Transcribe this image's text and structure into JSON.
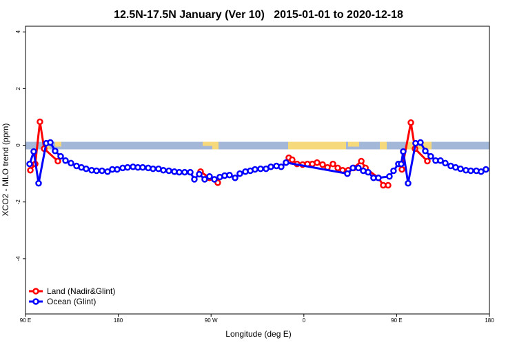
{
  "chart_data": {
    "type": "line",
    "title": "12.5N-17.5N January (Ver 10)   2015-01-01 to 2020-12-18",
    "x_label": "Longitude (deg E)",
    "y_label": "XCO2 - MLO trend (ppm)",
    "xlim": [
      90,
      540
    ],
    "ylim": [
      -5.95,
      4.2
    ],
    "xticks": [
      {
        "value": 90,
        "label": "90 E"
      },
      180,
      {
        "value": 270,
        "label": "90 W"
      },
      {
        "value": 360,
        "label": "0"
      },
      {
        "value": 450,
        "label": "90 E"
      },
      {
        "value": 540,
        "label": "180"
      }
    ],
    "yticks": [
      -4,
      -2,
      0,
      2,
      4
    ],
    "legend": "bottom-left",
    "series": [
      {
        "name": "Land (Nadir&Glint)",
        "color": "#ff0000",
        "x": [
          94.7,
          99.4,
          104.0,
          108.1,
          121.4,
          190,
          259.8,
          268.5,
          276.5,
          310,
          345.4,
          348.7,
          353.4,
          358.8,
          363.5,
          368.2,
          372.8,
          378.2,
          382.9,
          388.2,
          392.9,
          397.6,
          403.0,
          408.4,
          415.7,
          419.8,
          432.3,
          437.0,
          441.7,
          448,
          455.1,
          463.8,
          467.8,
          479.8
        ],
        "values": [
          -0.88,
          -0.66,
          0.83,
          -0.12,
          -0.56,
          null,
          -0.93,
          -1.15,
          -1.32,
          null,
          -0.44,
          -0.51,
          -0.66,
          -0.68,
          -0.66,
          -0.66,
          -0.61,
          -0.68,
          -0.78,
          -0.66,
          -0.8,
          -0.88,
          -0.88,
          -0.8,
          -0.56,
          -0.8,
          -1.15,
          -1.41,
          -1.41,
          null,
          -0.85,
          0.8,
          -0.12,
          -0.56
        ]
      },
      {
        "name": "Ocean (Glint)",
        "color": "#0000ff",
        "x": [
          94.0,
          98.0,
          102.7,
          110.1,
          114.1,
          118.7,
          124.1,
          128.8,
          134.1,
          139.5,
          144.2,
          148.8,
          154.2,
          158.9,
          164.2,
          169.6,
          174.2,
          178.9,
          184.3,
          189.0,
          194.3,
          199.0,
          203.7,
          209.0,
          213.7,
          219.0,
          223.7,
          229.1,
          234.4,
          239.1,
          244.4,
          249.8,
          253.8,
          258.5,
          263.8,
          268.5,
          273.2,
          278.5,
          283.2,
          287.9,
          293.3,
          297.9,
          303.3,
          308.0,
          312.6,
          318.0,
          323.3,
          328.0,
          333.4,
          338.0,
          342.7,
          402.2,
          407.6,
          412.9,
          417.6,
          422.3,
          427.6,
          432.3,
          443.0,
          447.0,
          451.7,
          454.4,
          456.4,
          461.1,
          468.4,
          473.1,
          477.8,
          483.1,
          487.8,
          492.5,
          497.2,
          502.5,
          507.2,
          511.9,
          517.2,
          521.9,
          527.3,
          531.9,
          536.6
        ],
        "values": [
          -0.66,
          -0.22,
          -1.34,
          0.07,
          0.1,
          -0.2,
          -0.39,
          -0.54,
          -0.63,
          -0.73,
          -0.78,
          -0.83,
          -0.88,
          -0.9,
          -0.9,
          -0.93,
          -0.85,
          -0.85,
          -0.8,
          -0.78,
          -0.76,
          -0.78,
          -0.78,
          -0.8,
          -0.83,
          -0.83,
          -0.88,
          -0.9,
          -0.93,
          -0.95,
          -0.95,
          -0.95,
          -1.2,
          -1.02,
          -1.2,
          -1.1,
          -1.2,
          -1.12,
          -1.07,
          -1.05,
          -1.15,
          -1.0,
          -0.93,
          -0.9,
          -0.85,
          -0.83,
          -0.83,
          -0.76,
          -0.73,
          -0.76,
          -0.61,
          -1.0,
          -0.8,
          -0.8,
          -0.9,
          -0.95,
          -1.15,
          -1.15,
          -1.1,
          -0.9,
          -0.66,
          -0.66,
          -0.22,
          -1.34,
          0.07,
          0.1,
          -0.2,
          -0.39,
          -0.54,
          -0.54,
          -0.63,
          -0.73,
          -0.78,
          -0.83,
          -0.88,
          -0.9,
          -0.9,
          -0.93,
          -0.85
        ]
      }
    ]
  }
}
